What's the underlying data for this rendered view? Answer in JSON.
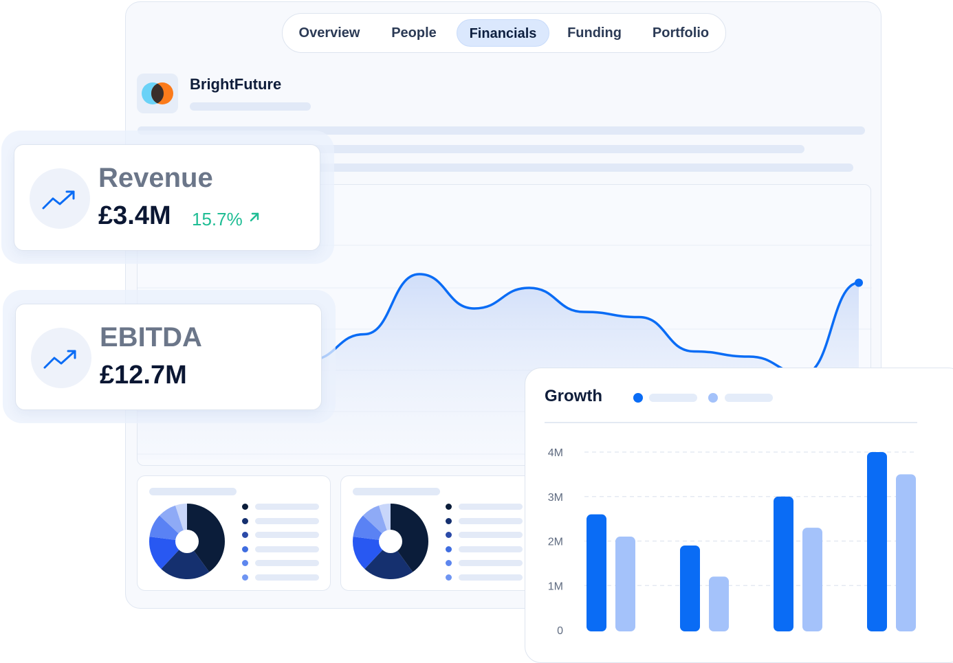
{
  "tabs": [
    {
      "label": "Overview"
    },
    {
      "label": "People"
    },
    {
      "label": "Financials",
      "active": true
    },
    {
      "label": "Funding"
    },
    {
      "label": "Portfolio"
    }
  ],
  "company": {
    "name": "BrightFuture"
  },
  "kpis": [
    {
      "label": "Revenue",
      "value": "£3.4M",
      "change": "15.7%",
      "icon": "trending-up-icon"
    },
    {
      "label": "EBITDA",
      "value": "£12.7M",
      "icon": "trending-up-icon"
    }
  ],
  "growth": {
    "title": "Growth"
  },
  "colors": {
    "primary": "#0a6cf5",
    "secondary": "#a4c2fa",
    "accent_green": "#1fbd94",
    "navy": "#0b1d3a"
  },
  "chart_data": [
    {
      "type": "area",
      "y": [
        30,
        45,
        80,
        60,
        72,
        58,
        55,
        35,
        32,
        22,
        75
      ],
      "grid": true
    },
    {
      "type": "bar",
      "title": "Growth",
      "categories": [
        "",
        "",
        "",
        ""
      ],
      "ylim": [
        0,
        4
      ],
      "yticks": [
        "0",
        "1M",
        "2M",
        "3M",
        "4M"
      ],
      "series": [
        {
          "values": [
            2.6,
            1.9,
            3.0,
            4.0
          ]
        },
        {
          "values": [
            2.1,
            1.2,
            2.3,
            3.5
          ]
        }
      ],
      "grid": true
    },
    {
      "type": "pie",
      "values": [
        40,
        22,
        15,
        10,
        8,
        5
      ]
    },
    {
      "type": "pie",
      "values": [
        40,
        22,
        15,
        10,
        8,
        5
      ]
    }
  ]
}
